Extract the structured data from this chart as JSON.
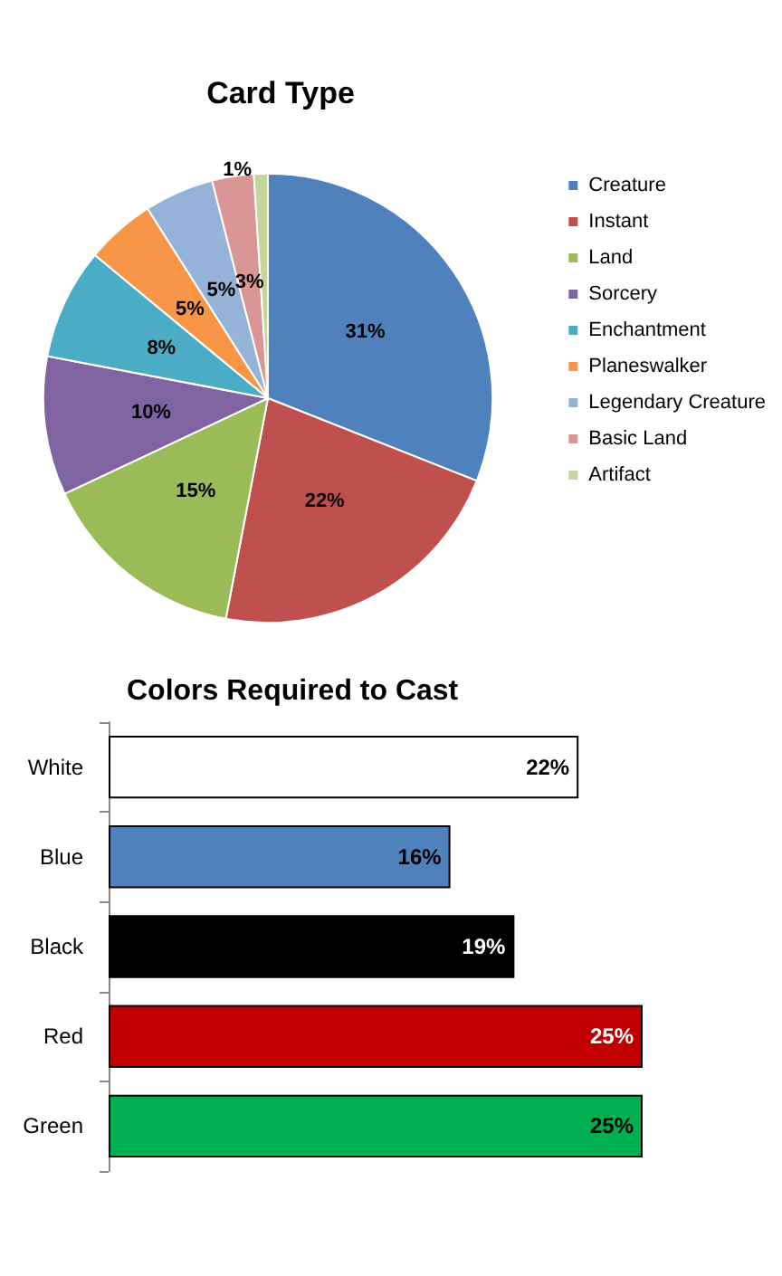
{
  "chart_data": [
    {
      "type": "pie",
      "title": "Card Type",
      "categories": [
        "Creature",
        "Instant",
        "Land",
        "Sorcery",
        "Enchantment",
        "Planeswalker",
        "Legendary Creature",
        "Basic Land",
        "Artifact"
      ],
      "values": [
        31,
        22,
        15,
        10,
        8,
        5,
        5,
        3,
        1
      ],
      "colors": [
        "#4f81bd",
        "#c0504d",
        "#9bbb59",
        "#8064a2",
        "#4bacc6",
        "#f79646",
        "#95b3d7",
        "#d99694",
        "#c3d69b"
      ],
      "value_labels": [
        "31%",
        "22%",
        "15%",
        "10%",
        "8%",
        "5%",
        "5%",
        "3%",
        "1%"
      ],
      "legend": "right"
    },
    {
      "type": "bar",
      "orientation": "horizontal",
      "title": "Colors Required to Cast",
      "categories": [
        "White",
        "Blue",
        "Black",
        "Red",
        "Green"
      ],
      "values": [
        22,
        16,
        19,
        25,
        25
      ],
      "colors": [
        "#ffffff",
        "#4f81bd",
        "#000000",
        "#c00000",
        "#00b050"
      ],
      "value_labels": [
        "22%",
        "16%",
        "19%",
        "25%",
        "25%"
      ]
    }
  ]
}
